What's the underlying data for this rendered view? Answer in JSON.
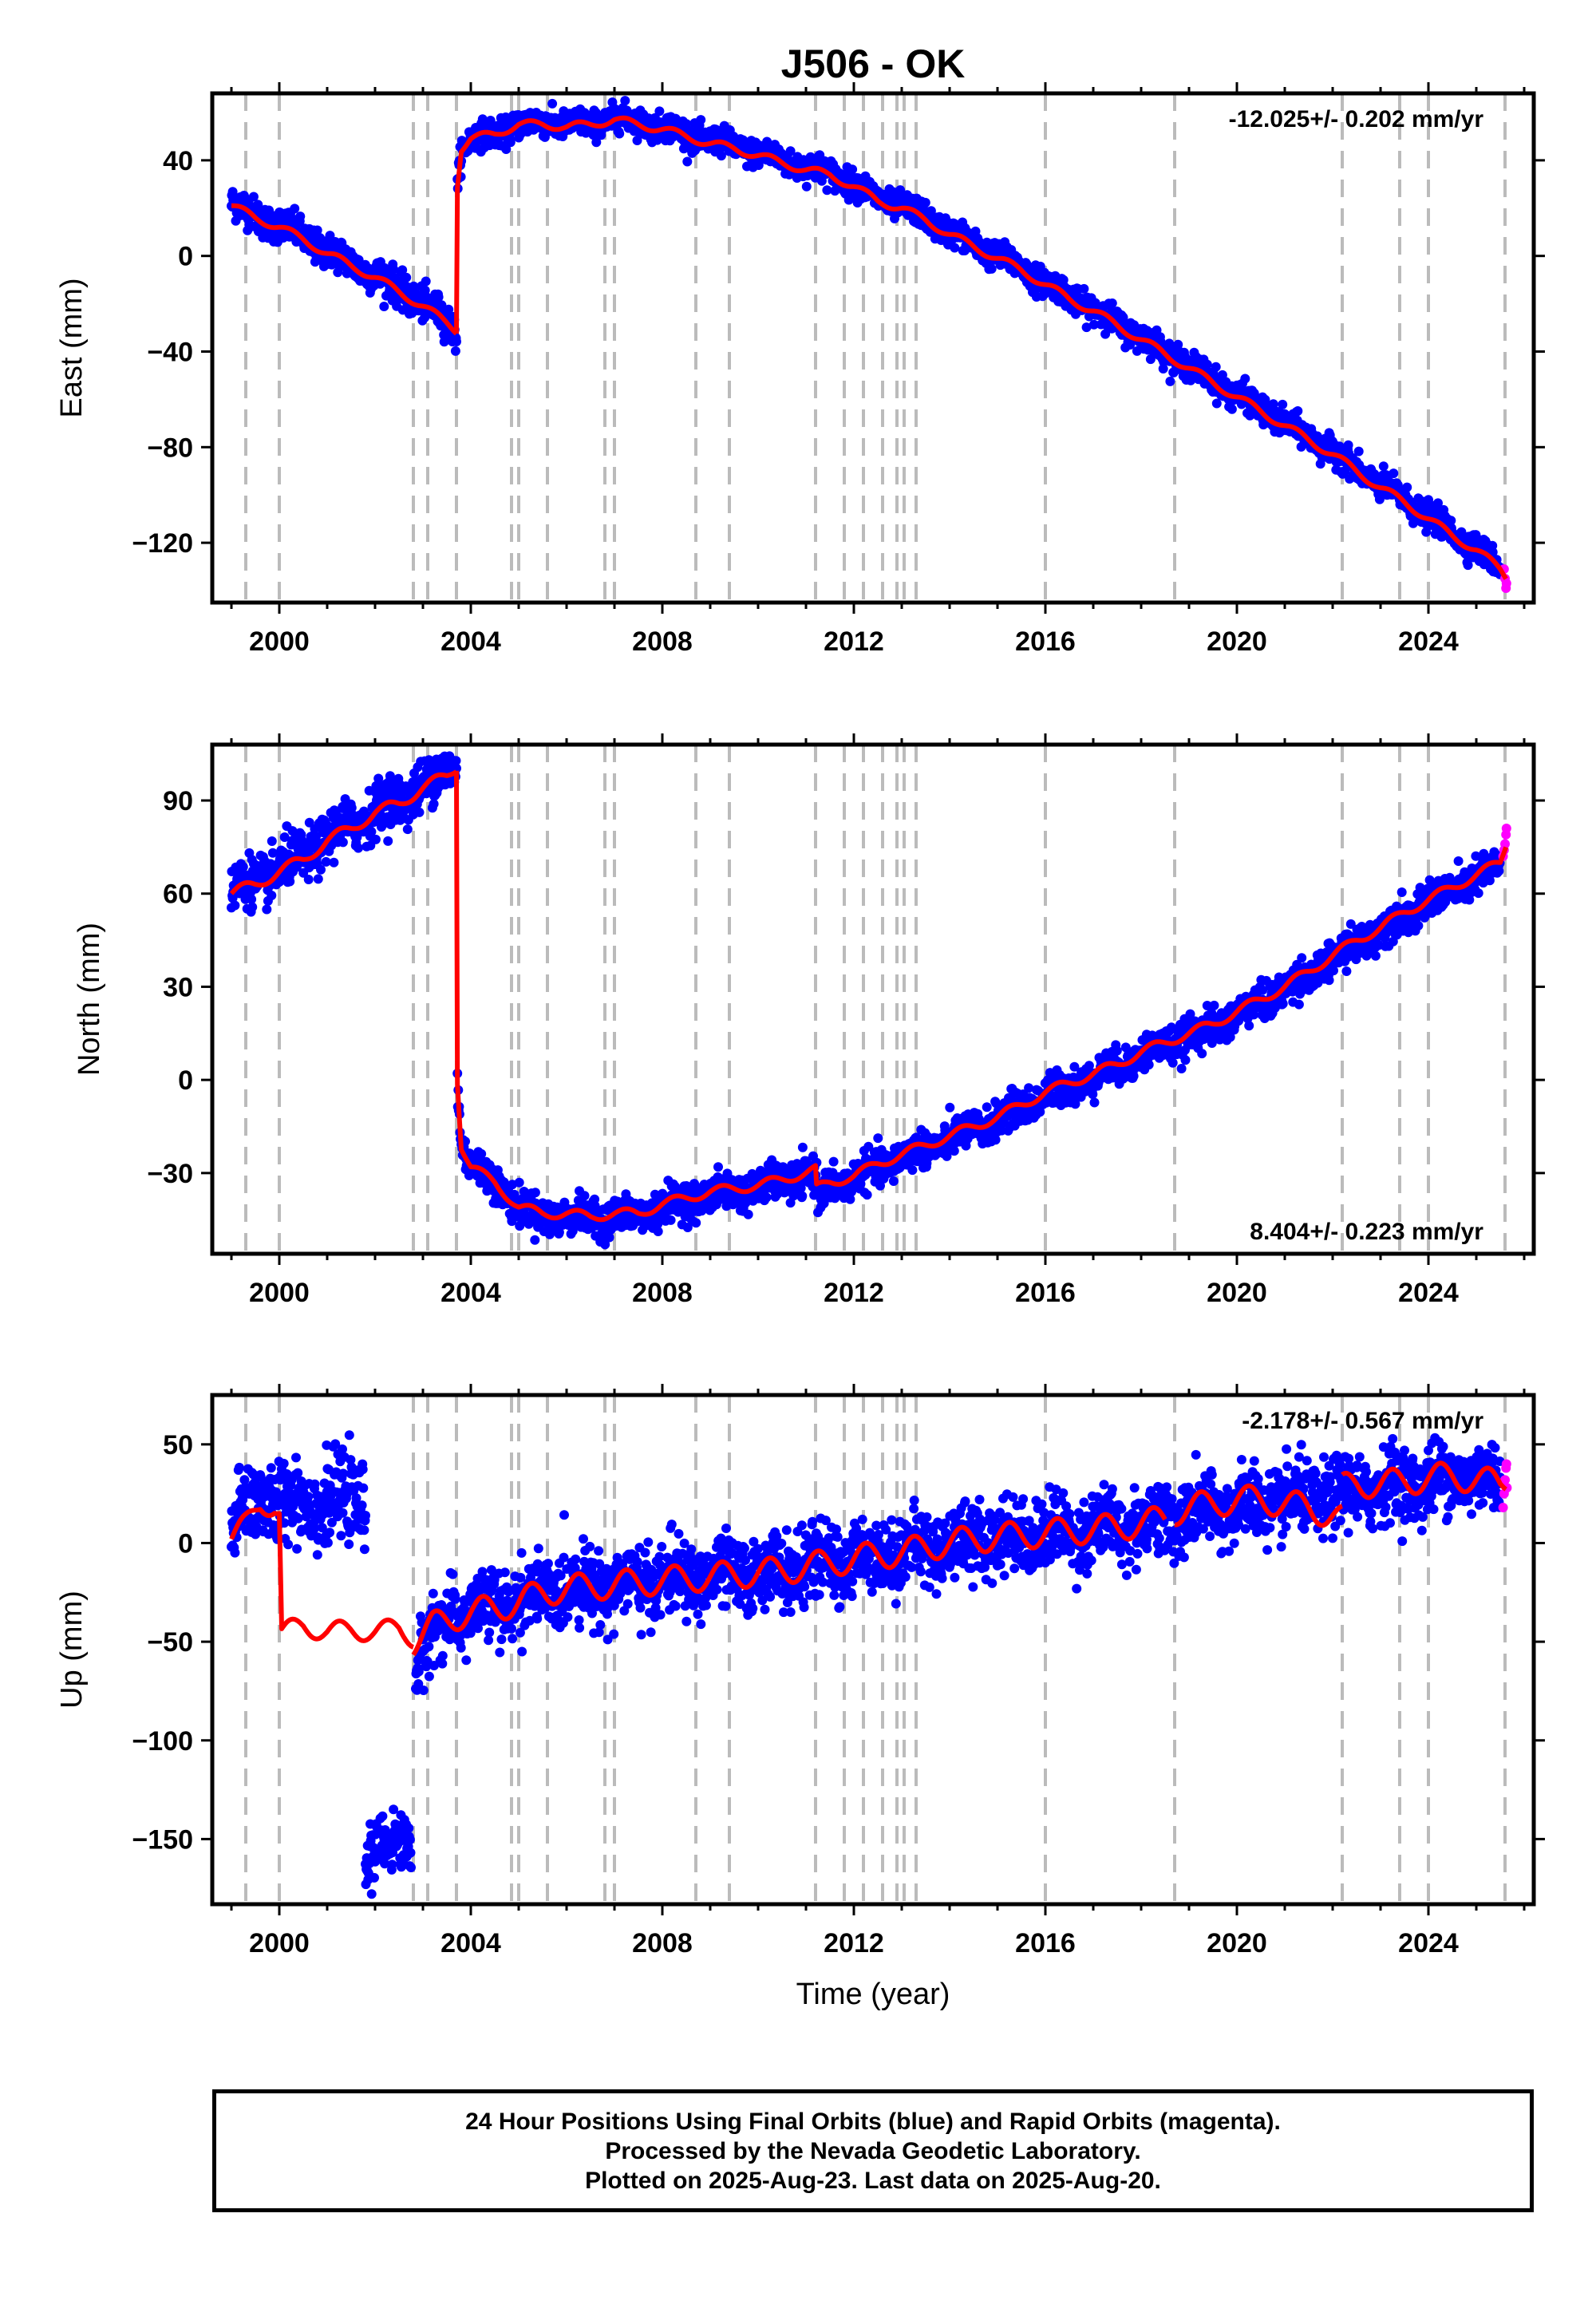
{
  "title": "J506 - OK",
  "colors": {
    "final_orbits": "#0000ff",
    "rapid_orbits": "#ff00ff",
    "model": "#ff0000",
    "event_lines": "#bbbbbb"
  },
  "footer": {
    "line1": "24 Hour Positions Using Final Orbits (blue) and Rapid Orbits (magenta).",
    "line2": "Processed by the Nevada Geodetic Laboratory.",
    "line3": "Plotted on 2025-Aug-23. Last data on 2025-Aug-20."
  },
  "chart_data": [
    {
      "type": "scatter",
      "component": "east",
      "ylabel": "East (mm)",
      "xlabel": "",
      "rate_label": "-12.025+/- 0.202 mm/yr",
      "rate_position": "top-right",
      "xlim": [
        1998.6,
        2026.2
      ],
      "ylim": [
        -145,
        68
      ],
      "xticks": [
        2000,
        2004,
        2008,
        2012,
        2016,
        2020,
        2024
      ],
      "yticks": [
        40,
        0,
        -40,
        -80,
        -120
      ],
      "ytick_labels": [
        "40",
        "0",
        "−40",
        "−80",
        "−120"
      ],
      "event_lines": [
        1999.3,
        2000.0,
        2002.8,
        2003.1,
        2003.7,
        2004.85,
        2005.0,
        2005.6,
        2006.8,
        2007.0,
        2008.7,
        2009.4,
        2011.2,
        2011.8,
        2012.2,
        2012.6,
        2012.9,
        2013.05,
        2013.3,
        2016.0,
        2018.7,
        2022.2,
        2023.4,
        2024.0,
        2025.6
      ],
      "final_segments": [
        {
          "x": [
            1999.0,
            1999.5,
            2000.0,
            2000.5,
            2001.0,
            2001.5,
            2002.0,
            2002.5,
            2003.0,
            2003.5,
            2003.7
          ],
          "y": [
            22,
            17,
            13,
            8,
            2,
            -3,
            -8,
            -14,
            -20,
            -27,
            -32
          ],
          "spread": 3.5
        },
        {
          "x": [
            2003.72,
            2003.8,
            2004.0,
            2004.5,
            2005.0,
            2005.5,
            2006.0,
            2006.5,
            2007.0,
            2007.5,
            2008.0,
            2008.5,
            2009.0,
            2009.5,
            2010.0,
            2010.5,
            2011.0,
            2011.5,
            2012.0,
            2012.5,
            2013.0,
            2013.5,
            2014.0,
            2014.5,
            2015.0,
            2015.5,
            2016.0,
            2016.5,
            2017.0,
            2017.5,
            2018.0,
            2018.5,
            2019.0,
            2019.5,
            2020.0,
            2020.5,
            2021.0,
            2021.5,
            2022.0,
            2022.5,
            2023.0,
            2023.5,
            2024.0,
            2024.5,
            2025.0,
            2025.5
          ],
          "y": [
            30,
            45,
            49,
            51,
            55,
            56,
            55,
            55,
            58,
            56,
            54,
            51,
            48,
            46,
            43,
            40,
            37,
            35,
            30,
            24,
            21,
            16,
            10,
            5,
            0,
            -5,
            -11,
            -17,
            -22,
            -28,
            -34,
            -40,
            -46,
            -52,
            -58,
            -64,
            -70,
            -76,
            -82,
            -89,
            -96,
            -102,
            -109,
            -116,
            -122,
            -131
          ],
          "spread": 2.8
        }
      ],
      "rapid_points": {
        "x": [
          2025.58,
          2025.6,
          2025.62,
          2025.63
        ],
        "y": [
          -131,
          -135,
          -139,
          -137
        ]
      },
      "model_segments": [
        {
          "x": [
            1999.0,
            1999.5,
            2000.0,
            2000.5,
            2001.0,
            2001.5,
            2002.0,
            2002.5,
            2003.0,
            2003.5,
            2003.7
          ],
          "y": [
            21,
            16,
            12,
            7,
            1,
            -4,
            -9,
            -15,
            -21,
            -28,
            -31
          ],
          "seasonal": 1.6
        },
        {
          "x": [
            2003.7,
            2003.72,
            2003.8,
            2004.0,
            2004.5,
            2005.0,
            2005.5,
            2006.0,
            2006.5,
            2007.0,
            2007.5,
            2008.0,
            2008.5,
            2009.0,
            2009.5,
            2010.0,
            2010.5,
            2011.0,
            2011.5,
            2012.0,
            2012.5,
            2013.0,
            2013.5,
            2014.0,
            2014.5,
            2015.0,
            2015.5,
            2016.0,
            2016.5,
            2017.0,
            2017.5,
            2018.0,
            2018.5,
            2019.0,
            2019.5,
            2020.0,
            2020.5,
            2021.0,
            2021.5,
            2022.0,
            2022.5,
            2023.0,
            2023.5,
            2024.0,
            2024.5,
            2025.0,
            2025.5,
            2025.62
          ],
          "y": [
            -31,
            30,
            45,
            49,
            51,
            55,
            55,
            54,
            55,
            57,
            55,
            53,
            50,
            47,
            45,
            42,
            39,
            36,
            34,
            29,
            23,
            20,
            15,
            9,
            4,
            -1,
            -6,
            -12,
            -18,
            -23,
            -29,
            -35,
            -41,
            -47,
            -53,
            -59,
            -65,
            -71,
            -77,
            -83,
            -90,
            -97,
            -103,
            -110,
            -117,
            -123,
            -131,
            -134
          ],
          "seasonal": 1.6
        }
      ]
    },
    {
      "type": "scatter",
      "component": "north",
      "ylabel": "North (mm)",
      "xlabel": "",
      "rate_label": "8.404+/- 0.223 mm/yr",
      "rate_position": "bottom-right",
      "xlim": [
        1998.6,
        2026.2
      ],
      "ylim": [
        -56,
        108
      ],
      "xticks": [
        2000,
        2004,
        2008,
        2012,
        2016,
        2020,
        2024
      ],
      "yticks": [
        90,
        60,
        30,
        0,
        -30
      ],
      "ytick_labels": [
        "90",
        "60",
        "30",
        "0",
        "−30"
      ],
      "event_lines": [
        1999.3,
        2000.0,
        2002.8,
        2003.1,
        2003.7,
        2004.85,
        2005.0,
        2005.6,
        2006.8,
        2007.0,
        2008.7,
        2009.4,
        2011.2,
        2011.8,
        2012.2,
        2012.6,
        2012.9,
        2013.05,
        2013.3,
        2016.0,
        2018.7,
        2022.2,
        2023.4,
        2024.0,
        2025.6
      ],
      "final_segments": [
        {
          "x": [
            1999.0,
            1999.5,
            2000.0,
            2000.5,
            2001.0,
            2001.5,
            2002.0,
            2002.5,
            2003.0,
            2003.5,
            2003.7
          ],
          "y": [
            61,
            64,
            68,
            72,
            78,
            82,
            87,
            90,
            95,
            99,
            102
          ],
          "spread": 4.0
        },
        {
          "x": [
            2003.72,
            2003.8,
            2004.0,
            2004.5,
            2005.0,
            2005.5,
            2006.0,
            2006.5,
            2007.0,
            2007.5,
            2008.0,
            2008.5,
            2009.0,
            2009.5,
            2010.0,
            2010.5,
            2011.0,
            2011.2,
            2011.25,
            2011.5,
            2012.0,
            2012.5,
            2013.0,
            2013.5,
            2014.0,
            2014.5,
            2015.0,
            2015.5,
            2016.0,
            2016.5,
            2017.0,
            2017.5,
            2018.0,
            2018.5,
            2019.0,
            2019.5,
            2020.0,
            2020.5,
            2021.0,
            2021.5,
            2022.0,
            2022.5,
            2023.0,
            2023.5,
            2024.0,
            2024.5,
            2025.0,
            2025.5
          ],
          "y": [
            0,
            -20,
            -27,
            -33,
            -41,
            -44,
            -44,
            -45,
            -44,
            -44,
            -41,
            -39,
            -37,
            -36,
            -35,
            -33,
            -31,
            -31,
            -38,
            -34,
            -32,
            -28,
            -25,
            -22,
            -19,
            -16,
            -13,
            -9,
            -5,
            -2,
            1,
            4,
            8,
            11,
            14,
            17,
            21,
            25,
            29,
            34,
            39,
            44,
            48,
            53,
            57,
            61,
            65,
            69
          ],
          "spread": 2.8
        }
      ],
      "rapid_points": {
        "x": [
          2025.56,
          2025.58,
          2025.6,
          2025.62,
          2025.63
        ],
        "y": [
          72,
          74,
          76,
          79,
          81
        ]
      },
      "model_segments": [
        {
          "x": [
            1999.0,
            1999.5,
            2000.0,
            2000.5,
            2001.0,
            2001.5,
            2002.0,
            2002.5,
            2003.0,
            2003.5,
            2003.7
          ],
          "y": [
            60,
            63,
            67,
            71,
            77,
            81,
            86,
            89,
            94,
            98,
            101
          ],
          "seasonal": 1.8
        },
        {
          "x": [
            2003.7,
            2003.72,
            2003.8,
            2004.0,
            2004.5,
            2005.0,
            2005.5,
            2006.0,
            2006.5,
            2007.0,
            2007.5,
            2008.0,
            2008.5,
            2009.0,
            2009.5,
            2010.0,
            2010.5,
            2011.0,
            2011.2,
            2011.22,
            2011.5,
            2012.0,
            2012.5,
            2013.0,
            2013.5,
            2014.0,
            2014.5,
            2015.0,
            2015.5,
            2016.0,
            2016.5,
            2017.0,
            2017.5,
            2018.0,
            2018.5,
            2019.0,
            2019.5,
            2020.0,
            2020.5,
            2021.0,
            2021.5,
            2022.0,
            2022.5,
            2023.0,
            2023.5,
            2024.0,
            2024.5,
            2025.0,
            2025.5,
            2025.62
          ],
          "y": [
            101,
            0,
            -21,
            -28,
            -33,
            -41,
            -43,
            -43,
            -44,
            -43,
            -43,
            -40,
            -38,
            -36,
            -35,
            -34,
            -32,
            -30,
            -29,
            -35,
            -33,
            -31,
            -27,
            -24,
            -21,
            -18,
            -15,
            -12,
            -8,
            -4,
            -1,
            2,
            5,
            9,
            12,
            15,
            18,
            22,
            26,
            30,
            35,
            40,
            45,
            49,
            54,
            58,
            62,
            66,
            70,
            76
          ],
          "seasonal": 1.5
        }
      ]
    },
    {
      "type": "scatter",
      "component": "up",
      "ylabel": "Up (mm)",
      "xlabel": "Time (year)",
      "rate_label": "-2.178+/- 0.567 mm/yr",
      "rate_position": "top-right",
      "xlim": [
        1998.6,
        2026.2
      ],
      "ylim": [
        -183,
        75
      ],
      "xticks": [
        2000,
        2004,
        2008,
        2012,
        2016,
        2020,
        2024
      ],
      "yticks": [
        50,
        0,
        -50,
        -100,
        -150
      ],
      "ytick_labels": [
        "50",
        "0",
        "−50",
        "−100",
        "−150"
      ],
      "event_lines": [
        1999.3,
        2000.0,
        2002.8,
        2003.1,
        2003.7,
        2004.85,
        2005.0,
        2005.6,
        2006.8,
        2007.0,
        2008.7,
        2009.4,
        2011.2,
        2011.8,
        2012.2,
        2012.6,
        2012.9,
        2013.05,
        2013.3,
        2016.0,
        2018.7,
        2022.2,
        2023.4,
        2024.0,
        2025.6
      ],
      "final_segments": [
        {
          "x": [
            1999.0,
            1999.3,
            1999.6,
            2000.0,
            2000.5,
            2001.0,
            2001.5,
            2001.8
          ],
          "y": [
            5,
            18,
            25,
            20,
            22,
            20,
            22,
            20
          ],
          "spread": 10
        },
        {
          "x": [
            2001.8,
            2002.2,
            2002.6,
            2002.75
          ],
          "y": [
            -158,
            -155,
            -150,
            -152
          ],
          "spread": 7
        },
        {
          "x": [
            2002.85,
            2003.2,
            2003.6,
            2004.0,
            2004.5,
            2005.0,
            2005.5,
            2006.0,
            2006.5,
            2007.0,
            2007.5,
            2008.0,
            2008.5,
            2009.0,
            2009.5,
            2010.0,
            2010.5,
            2011.0,
            2011.5,
            2012.0,
            2012.5,
            2013.0,
            2013.5,
            2014.0,
            2014.5,
            2015.0,
            2015.5,
            2016.0,
            2016.5,
            2017.0,
            2017.5,
            2018.0,
            2018.5,
            2019.0,
            2019.5,
            2020.0,
            2020.5,
            2021.0,
            2021.5,
            2022.0,
            2022.5,
            2023.0,
            2023.5,
            2024.0,
            2024.5,
            2025.0,
            2025.5
          ],
          "y": [
            -62,
            -45,
            -38,
            -35,
            -33,
            -30,
            -25,
            -23,
            -22,
            -21,
            -20,
            -19,
            -18,
            -17,
            -16,
            -15,
            -14,
            -12,
            -10,
            -8,
            -6,
            -5,
            -2,
            0,
            2,
            3,
            4,
            5,
            6,
            7,
            8,
            10,
            12,
            14,
            16,
            18,
            20,
            21,
            22,
            24,
            26,
            28,
            30,
            31,
            33,
            34,
            30
          ],
          "spread": 9
        }
      ],
      "rapid_points": {
        "x": [
          2025.56,
          2025.58,
          2025.6,
          2025.62,
          2025.63,
          2025.64
        ],
        "y": [
          18,
          25,
          32,
          38,
          40,
          28
        ]
      },
      "model_segments": [
        {
          "x": [
            1999.0,
            1999.3,
            1999.6,
            1999.9,
            2000.0,
            2000.05,
            2000.5,
            2001.0,
            2001.5,
            2002.0,
            2002.5,
            2002.8
          ],
          "y": [
            2,
            10,
            20,
            18,
            15,
            -45,
            -42,
            -45,
            -44,
            -45,
            -43,
            -48
          ],
          "seasonal": 5
        },
        {
          "x": [
            2002.8,
            2003.2,
            2003.6,
            2004.0,
            2004.5,
            2005.0,
            2005.5,
            2006.0,
            2006.5,
            2007.0,
            2007.5,
            2008.0,
            2008.5,
            2009.0,
            2009.5,
            2010.0,
            2010.5,
            2011.0,
            2011.5,
            2012.0,
            2012.5,
            2013.0,
            2013.5,
            2014.0,
            2014.5,
            2015.0,
            2015.5,
            2016.0,
            2016.5,
            2017.0,
            2017.5,
            2018.0,
            2018.5
          ],
          "y": [
            -50,
            -42,
            -38,
            -35,
            -33,
            -30,
            -25,
            -23,
            -22,
            -21,
            -20,
            -19,
            -18,
            -17,
            -16,
            -15,
            -14,
            -12,
            -10,
            -8,
            -6,
            -5,
            -2,
            0,
            2,
            3,
            4,
            5,
            6,
            7,
            8,
            10,
            12
          ],
          "seasonal": 7
        },
        {
          "x": [
            2018.7,
            2019.0,
            2019.5,
            2020.0,
            2020.5,
            2021.0,
            2021.5,
            2022.0,
            2022.2
          ],
          "y": [
            16,
            18,
            20,
            22,
            22,
            20,
            18,
            14,
            12
          ],
          "seasonal": 7
        },
        {
          "x": [
            2022.2,
            2022.5,
            2023.0,
            2023.5,
            2024.0,
            2024.5,
            2025.0,
            2025.5,
            2025.62
          ],
          "y": [
            28,
            30,
            30,
            31,
            33,
            34,
            32,
            30,
            32
          ],
          "seasonal": 7
        }
      ]
    }
  ]
}
